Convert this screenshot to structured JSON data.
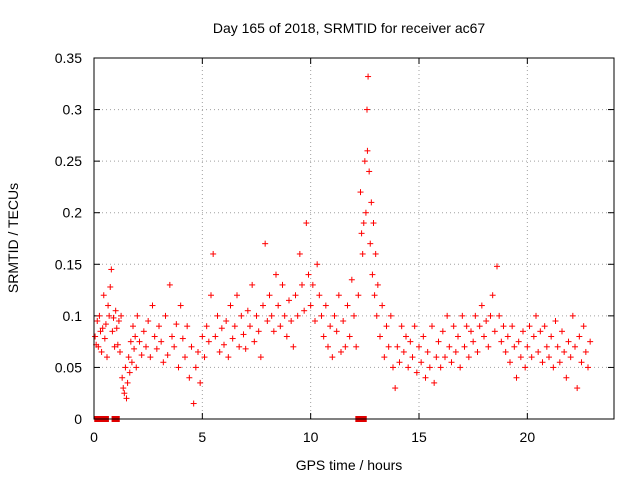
{
  "chart_data": {
    "type": "scatter",
    "title": "Day 165 of 2018, SRMTID for receiver ac67",
    "xlabel": "GPS time / hours",
    "ylabel": "SRMTID / TECUs",
    "xlim": [
      0,
      24
    ],
    "ylim": [
      0,
      0.35
    ],
    "grid": true,
    "x_ticks": [
      0,
      5,
      10,
      15,
      20
    ],
    "x_tick_labels": [
      "0",
      "5",
      "10",
      "15",
      "20"
    ],
    "y_ticks": [
      0,
      0.05,
      0.1,
      0.15,
      0.2,
      0.25,
      0.3,
      0.35
    ],
    "y_tick_labels": [
      "0",
      "0.05",
      "0.1",
      "0.15",
      "0.2",
      "0.25",
      "0.3",
      "0.35"
    ],
    "marker": "plus",
    "marker_color": "#ff0000",
    "series": [
      {
        "name": "SRMTID",
        "color": "#ff0000",
        "points": [
          [
            0.05,
            0.08
          ],
          [
            0.1,
            0.072
          ],
          [
            0.15,
            0.095
          ],
          [
            0.2,
            0.07
          ],
          [
            0.25,
            0.1
          ],
          [
            0.3,
            0.085
          ],
          [
            0.35,
            0.065
          ],
          [
            0.4,
            0.088
          ],
          [
            0.45,
            0.12
          ],
          [
            0.5,
            0.078
          ],
          [
            0.55,
            0.092
          ],
          [
            0.6,
            0.06
          ],
          [
            0.65,
            0.11
          ],
          [
            0.7,
            0.1
          ],
          [
            0.75,
            0.128
          ],
          [
            0.8,
            0.145
          ],
          [
            0.85,
            0.085
          ],
          [
            0.9,
            0.098
          ],
          [
            0.95,
            0.07
          ],
          [
            1.0,
            0.105
          ],
          [
            1.05,
            0.088
          ],
          [
            1.1,
            0.072
          ],
          [
            1.15,
            0.095
          ],
          [
            1.2,
            0.065
          ],
          [
            1.25,
            0.1
          ],
          [
            1.3,
            0.04
          ],
          [
            1.35,
            0.03
          ],
          [
            1.4,
            0.025
          ],
          [
            1.45,
            0.05
          ],
          [
            1.5,
            0.02
          ],
          [
            1.55,
            0.035
          ],
          [
            1.6,
            0.06
          ],
          [
            1.65,
            0.045
          ],
          [
            1.7,
            0.075
          ],
          [
            1.75,
            0.055
          ],
          [
            1.8,
            0.09
          ],
          [
            1.85,
            0.068
          ],
          [
            1.9,
            0.08
          ],
          [
            1.95,
            0.05
          ],
          [
            2.0,
            0.1
          ],
          [
            2.1,
            0.075
          ],
          [
            2.2,
            0.062
          ],
          [
            2.3,
            0.085
          ],
          [
            2.4,
            0.07
          ],
          [
            2.5,
            0.095
          ],
          [
            2.6,
            0.06
          ],
          [
            2.7,
            0.11
          ],
          [
            2.8,
            0.08
          ],
          [
            2.9,
            0.068
          ],
          [
            3.0,
            0.09
          ],
          [
            3.1,
            0.075
          ],
          [
            3.2,
            0.055
          ],
          [
            3.3,
            0.1
          ],
          [
            3.4,
            0.062
          ],
          [
            3.5,
            0.13
          ],
          [
            3.6,
            0.08
          ],
          [
            3.7,
            0.07
          ],
          [
            3.8,
            0.092
          ],
          [
            3.9,
            0.05
          ],
          [
            4.0,
            0.11
          ],
          [
            4.1,
            0.078
          ],
          [
            4.2,
            0.06
          ],
          [
            4.3,
            0.09
          ],
          [
            4.4,
            0.04
          ],
          [
            4.5,
            0.07
          ],
          [
            4.6,
            0.015
          ],
          [
            4.7,
            0.05
          ],
          [
            4.8,
            0.065
          ],
          [
            4.9,
            0.035
          ],
          [
            5.0,
            0.08
          ],
          [
            5.1,
            0.06
          ],
          [
            5.2,
            0.09
          ],
          [
            5.3,
            0.075
          ],
          [
            5.4,
            0.12
          ],
          [
            5.5,
            0.16
          ],
          [
            5.6,
            0.08
          ],
          [
            5.7,
            0.1
          ],
          [
            5.8,
            0.065
          ],
          [
            5.9,
            0.088
          ],
          [
            6.0,
            0.072
          ],
          [
            6.1,
            0.095
          ],
          [
            6.2,
            0.06
          ],
          [
            6.3,
            0.11
          ],
          [
            6.4,
            0.078
          ],
          [
            6.5,
            0.09
          ],
          [
            6.6,
            0.12
          ],
          [
            6.7,
            0.07
          ],
          [
            6.8,
            0.1
          ],
          [
            6.9,
            0.082
          ],
          [
            7.0,
            0.068
          ],
          [
            7.1,
            0.105
          ],
          [
            7.2,
            0.09
          ],
          [
            7.3,
            0.13
          ],
          [
            7.4,
            0.075
          ],
          [
            7.5,
            0.1
          ],
          [
            7.6,
            0.085
          ],
          [
            7.7,
            0.06
          ],
          [
            7.8,
            0.11
          ],
          [
            7.9,
            0.17
          ],
          [
            8.0,
            0.095
          ],
          [
            8.1,
            0.12
          ],
          [
            8.2,
            0.1
          ],
          [
            8.3,
            0.085
          ],
          [
            8.4,
            0.14
          ],
          [
            8.5,
            0.11
          ],
          [
            8.6,
            0.09
          ],
          [
            8.7,
            0.13
          ],
          [
            8.8,
            0.1
          ],
          [
            8.9,
            0.08
          ],
          [
            9.0,
            0.115
          ],
          [
            9.1,
            0.095
          ],
          [
            9.2,
            0.07
          ],
          [
            9.3,
            0.12
          ],
          [
            9.4,
            0.1
          ],
          [
            9.5,
            0.16
          ],
          [
            9.6,
            0.13
          ],
          [
            9.7,
            0.105
          ],
          [
            9.8,
            0.19
          ],
          [
            9.9,
            0.14
          ],
          [
            10.0,
            0.11
          ],
          [
            10.1,
            0.13
          ],
          [
            10.2,
            0.095
          ],
          [
            10.3,
            0.15
          ],
          [
            10.4,
            0.12
          ],
          [
            10.5,
            0.1
          ],
          [
            10.6,
            0.08
          ],
          [
            10.7,
            0.11
          ],
          [
            10.8,
            0.07
          ],
          [
            10.9,
            0.09
          ],
          [
            11.0,
            0.06
          ],
          [
            11.1,
            0.1
          ],
          [
            11.2,
            0.085
          ],
          [
            11.3,
            0.12
          ],
          [
            11.4,
            0.065
          ],
          [
            11.5,
            0.095
          ],
          [
            11.6,
            0.07
          ],
          [
            11.7,
            0.11
          ],
          [
            11.8,
            0.08
          ],
          [
            11.9,
            0.135
          ],
          [
            12.0,
            0.1
          ],
          [
            12.1,
            0.07
          ],
          [
            12.2,
            0.12
          ],
          [
            12.3,
            0.22
          ],
          [
            12.35,
            0.18
          ],
          [
            12.4,
            0.16
          ],
          [
            12.45,
            0.19
          ],
          [
            12.5,
            0.25
          ],
          [
            12.55,
            0.2
          ],
          [
            12.6,
            0.3
          ],
          [
            12.62,
            0.26
          ],
          [
            12.65,
            0.332
          ],
          [
            12.7,
            0.24
          ],
          [
            12.75,
            0.17
          ],
          [
            12.8,
            0.21
          ],
          [
            12.85,
            0.14
          ],
          [
            12.9,
            0.19
          ],
          [
            12.95,
            0.12
          ],
          [
            13.0,
            0.16
          ],
          [
            13.05,
            0.1
          ],
          [
            13.1,
            0.13
          ],
          [
            13.2,
            0.08
          ],
          [
            13.3,
            0.11
          ],
          [
            13.4,
            0.06
          ],
          [
            13.5,
            0.09
          ],
          [
            13.6,
            0.07
          ],
          [
            13.7,
            0.1
          ],
          [
            13.8,
            0.05
          ],
          [
            13.9,
            0.03
          ],
          [
            14.0,
            0.07
          ],
          [
            14.1,
            0.055
          ],
          [
            14.2,
            0.09
          ],
          [
            14.3,
            0.065
          ],
          [
            14.4,
            0.08
          ],
          [
            14.5,
            0.05
          ],
          [
            14.6,
            0.075
          ],
          [
            14.7,
            0.06
          ],
          [
            14.8,
            0.09
          ],
          [
            14.9,
            0.045
          ],
          [
            15.0,
            0.07
          ],
          [
            15.1,
            0.055
          ],
          [
            15.2,
            0.08
          ],
          [
            15.3,
            0.04
          ],
          [
            15.4,
            0.065
          ],
          [
            15.5,
            0.05
          ],
          [
            15.6,
            0.09
          ],
          [
            15.7,
            0.035
          ],
          [
            15.8,
            0.06
          ],
          [
            15.9,
            0.075
          ],
          [
            16.0,
            0.05
          ],
          [
            16.1,
            0.085
          ],
          [
            16.2,
            0.06
          ],
          [
            16.3,
            0.1
          ],
          [
            16.4,
            0.07
          ],
          [
            16.5,
            0.055
          ],
          [
            16.6,
            0.09
          ],
          [
            16.7,
            0.065
          ],
          [
            16.8,
            0.08
          ],
          [
            16.9,
            0.05
          ],
          [
            17.0,
            0.1
          ],
          [
            17.1,
            0.07
          ],
          [
            17.2,
            0.09
          ],
          [
            17.3,
            0.06
          ],
          [
            17.4,
            0.085
          ],
          [
            17.5,
            0.075
          ],
          [
            17.6,
            0.1
          ],
          [
            17.7,
            0.065
          ],
          [
            17.8,
            0.09
          ],
          [
            17.9,
            0.11
          ],
          [
            18.0,
            0.08
          ],
          [
            18.1,
            0.095
          ],
          [
            18.2,
            0.07
          ],
          [
            18.3,
            0.1
          ],
          [
            18.4,
            0.12
          ],
          [
            18.5,
            0.085
          ],
          [
            18.6,
            0.148
          ],
          [
            18.7,
            0.1
          ],
          [
            18.8,
            0.075
          ],
          [
            18.9,
            0.09
          ],
          [
            19.0,
            0.065
          ],
          [
            19.1,
            0.08
          ],
          [
            19.2,
            0.055
          ],
          [
            19.3,
            0.09
          ],
          [
            19.4,
            0.07
          ],
          [
            19.5,
            0.04
          ],
          [
            19.6,
            0.075
          ],
          [
            19.7,
            0.06
          ],
          [
            19.8,
            0.085
          ],
          [
            19.9,
            0.05
          ],
          [
            20.0,
            0.07
          ],
          [
            20.1,
            0.09
          ],
          [
            20.2,
            0.06
          ],
          [
            20.3,
            0.08
          ],
          [
            20.4,
            0.1
          ],
          [
            20.5,
            0.065
          ],
          [
            20.6,
            0.085
          ],
          [
            20.7,
            0.055
          ],
          [
            20.8,
            0.09
          ],
          [
            20.9,
            0.07
          ],
          [
            21.0,
            0.06
          ],
          [
            21.1,
            0.08
          ],
          [
            21.2,
            0.05
          ],
          [
            21.3,
            0.095
          ],
          [
            21.4,
            0.07
          ],
          [
            21.5,
            0.055
          ],
          [
            21.6,
            0.085
          ],
          [
            21.7,
            0.065
          ],
          [
            21.8,
            0.04
          ],
          [
            21.9,
            0.075
          ],
          [
            22.0,
            0.06
          ],
          [
            22.1,
            0.1
          ],
          [
            22.2,
            0.07
          ],
          [
            22.3,
            0.03
          ],
          [
            22.4,
            0.08
          ],
          [
            22.5,
            0.055
          ],
          [
            22.6,
            0.09
          ],
          [
            22.7,
            0.065
          ],
          [
            22.8,
            0.05
          ],
          [
            22.9,
            0.075
          ]
        ]
      }
    ],
    "zero_markers_x": [
      0.15,
      0.25,
      0.5,
      0.55,
      0.95,
      1.05,
      12.2,
      12.25,
      12.3,
      12.35,
      12.4,
      12.45
    ]
  }
}
